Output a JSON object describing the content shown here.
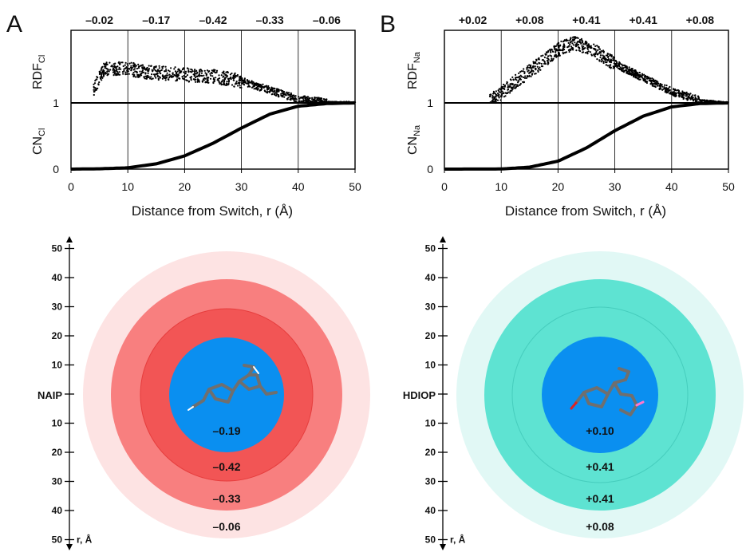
{
  "panels": [
    {
      "letter": "A",
      "ylabel_top": {
        "main": "RDF",
        "sub": "Cl"
      },
      "ylabel_bottom": {
        "main": "CN",
        "sub": "Cl"
      },
      "ytick_labels": [
        "1",
        "0"
      ],
      "x_axis_title": "Distance from Switch, r (Å)",
      "molecule_name": "NAIP",
      "ring_labels": [
        "–0.19",
        "–0.42",
        "–0.33",
        "–0.06"
      ],
      "colors": {
        "core": "#0a8ff0",
        "ring1": "#f25555",
        "ring2": "#f87f7f",
        "ring3": "#fde3e3",
        "inner_edge": "#e63d3d"
      }
    },
    {
      "letter": "B",
      "ylabel_top": {
        "main": "RDF",
        "sub": "Na"
      },
      "ylabel_bottom": {
        "main": "CN",
        "sub": "Na"
      },
      "ytick_labels": [
        "1",
        "0"
      ],
      "x_axis_title": "Distance from Switch, r (Å)",
      "molecule_name": "HDIOP",
      "ring_labels": [
        "+0.10",
        "+0.41",
        "+0.41",
        "+0.08"
      ],
      "colors": {
        "core": "#0a8ff0",
        "ring1": "#5ee3d2",
        "ring2": "#5ee3d2",
        "ring3": "#e1f8f5",
        "inner_edge": "#46cdbd"
      }
    }
  ],
  "radial_axis": {
    "ticks_upper": [
      "50",
      "40",
      "30",
      "20",
      "10"
    ],
    "ticks_lower": [
      "10",
      "20",
      "30",
      "40",
      "50"
    ],
    "unit_label": "r, Å"
  },
  "chart_data": [
    {
      "type": "scatter",
      "title": "",
      "xlabel": "Distance from Switch, r (Å)",
      "ylabel": "RDF_Cl / CN_Cl",
      "xlim": [
        0,
        50
      ],
      "xticks": [
        "0",
        "10",
        "20",
        "30",
        "40",
        "50"
      ],
      "vertical_gridlines": [
        10,
        20,
        30,
        40
      ],
      "band_labels": [
        "–0.02",
        "–0.17",
        "–0.42",
        "–0.33",
        "–0.06"
      ],
      "series": [
        {
          "name": "RDF",
          "x": [
            4,
            5,
            6,
            8,
            10,
            12,
            15,
            20,
            25,
            30,
            35,
            40,
            45,
            50
          ],
          "y": [
            1.2,
            1.4,
            1.55,
            1.55,
            1.55,
            1.5,
            1.48,
            1.45,
            1.42,
            1.35,
            1.2,
            1.06,
            1.01,
            1.0
          ]
        },
        {
          "name": "CN",
          "x": [
            0,
            5,
            10,
            15,
            20,
            25,
            30,
            35,
            40,
            45,
            50
          ],
          "y": [
            0.0,
            0.005,
            0.02,
            0.08,
            0.2,
            0.39,
            0.62,
            0.83,
            0.95,
            0.99,
            1.0
          ]
        }
      ]
    },
    {
      "type": "scatter",
      "title": "",
      "xlabel": "Distance from Switch, r (Å)",
      "ylabel": "RDF_Na / CN_Na",
      "xlim": [
        0,
        50
      ],
      "xticks": [
        "0",
        "10",
        "20",
        "30",
        "40",
        "50"
      ],
      "vertical_gridlines": [
        10,
        20,
        30,
        40
      ],
      "band_labels": [
        "+0.02",
        "+0.08",
        "+0.41",
        "+0.41",
        "+0.08"
      ],
      "series": [
        {
          "name": "RDF",
          "x": [
            8,
            10,
            12,
            15,
            18,
            20,
            23,
            26,
            30,
            35,
            40,
            45,
            50
          ],
          "y": [
            1.05,
            1.15,
            1.3,
            1.5,
            1.7,
            1.85,
            1.95,
            1.85,
            1.62,
            1.4,
            1.18,
            1.04,
            1.0
          ]
        },
        {
          "name": "CN",
          "x": [
            0,
            10,
            15,
            20,
            25,
            30,
            35,
            40,
            45,
            50
          ],
          "y": [
            0.0,
            0.002,
            0.03,
            0.12,
            0.32,
            0.58,
            0.8,
            0.94,
            0.99,
            1.0
          ]
        }
      ]
    }
  ]
}
